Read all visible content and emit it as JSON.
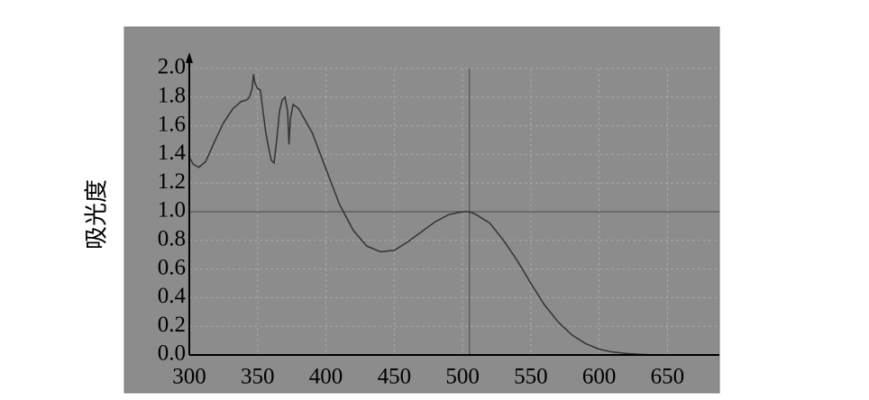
{
  "chart_data": {
    "type": "line",
    "y_label": "吸光度",
    "x": [
      300,
      303,
      307,
      312,
      318,
      325,
      332,
      338,
      342,
      344,
      346,
      347,
      348,
      350,
      352,
      354,
      356,
      358,
      360,
      362,
      364,
      366,
      368,
      370,
      372,
      373,
      374,
      376,
      380,
      390,
      400,
      410,
      420,
      430,
      440,
      450,
      460,
      470,
      480,
      490,
      500,
      505,
      510,
      520,
      530,
      540,
      550,
      560,
      570,
      580,
      590,
      600,
      610,
      620,
      630,
      640,
      688
    ],
    "series": [
      {
        "color": "#333333",
        "values": [
          1.38,
          1.33,
          1.31,
          1.35,
          1.48,
          1.62,
          1.72,
          1.77,
          1.78,
          1.8,
          1.86,
          1.96,
          1.9,
          1.86,
          1.85,
          1.7,
          1.55,
          1.45,
          1.36,
          1.34,
          1.5,
          1.7,
          1.78,
          1.8,
          1.7,
          1.47,
          1.65,
          1.75,
          1.72,
          1.55,
          1.3,
          1.05,
          0.87,
          0.76,
          0.72,
          0.73,
          0.79,
          0.86,
          0.93,
          0.98,
          1.0,
          1.0,
          0.98,
          0.92,
          0.8,
          0.66,
          0.5,
          0.35,
          0.23,
          0.14,
          0.08,
          0.04,
          0.02,
          0.01,
          0.005,
          0,
          0
        ]
      }
    ],
    "xlim": [
      300,
      688
    ],
    "ylim": [
      0,
      2
    ],
    "xticks": [
      300,
      350,
      400,
      450,
      500,
      550,
      600,
      650
    ],
    "yticks": [
      {
        "value": 0,
        "label": "0.0"
      },
      {
        "value": 0.2,
        "label": "0.2"
      },
      {
        "value": 0.4,
        "label": "0.4"
      },
      {
        "value": 0.6,
        "label": "0.6"
      },
      {
        "value": 0.8,
        "label": "0.8"
      },
      {
        "value": 1,
        "label": "1.0"
      },
      {
        "value": 1.2,
        "label": "1.2"
      },
      {
        "value": 1.4,
        "label": "1.4"
      },
      {
        "value": 1.6,
        "label": "1.6"
      },
      {
        "value": 1.8,
        "label": "1.8"
      },
      {
        "value": 2,
        "label": "2.0"
      }
    ],
    "grid": true,
    "crosshair_x": 505,
    "crosshair_y": 1.0,
    "background": "#8c8c8c"
  }
}
